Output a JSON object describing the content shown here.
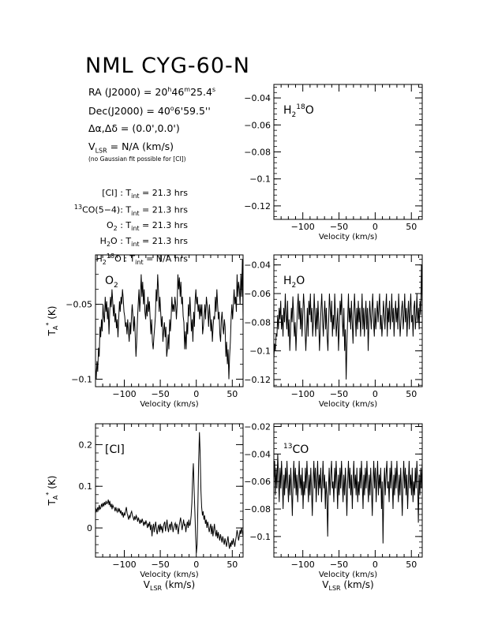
{
  "header": {
    "title": "NML CYG-60-N",
    "ra_label": "RA (J2000) =",
    "ra_h": "20",
    "ra_m": "46",
    "ra_s": "25.4",
    "dec_label": "Dec(J2000) =",
    "dec_d": "40",
    "dec_rest": "6'59.5''",
    "offset_label": "Δα,Δδ = (0.0',0.0')",
    "vlsr_pre": "V",
    "vlsr_sub": "LSR",
    "vlsr_post": " = N/A (km/s)",
    "note": "(no Gaussian fit possible for [CI])"
  },
  "integrations": [
    {
      "label": "[CI] : T",
      "sub": "int",
      "value": " = 21.3 hrs"
    },
    {
      "label": "CO(5−4): T",
      "pre_sup": "13",
      "sub": "int",
      "value": " = 21.3 hrs"
    },
    {
      "label": "O",
      "label_sub": "2",
      "label_post": " : T",
      "sub": "int",
      "value": " = 21.3 hrs"
    },
    {
      "label": "H",
      "label_sub": "2",
      "label_post": "O : T",
      "sub": "int",
      "value": " = 21.3 hrs"
    },
    {
      "label": "H",
      "label_sub": "2",
      "label_sup": "18",
      "label_post": "O : T",
      "sub": "int",
      "value": " = N/A hrs"
    }
  ],
  "axis_text": {
    "velocity": "Velocity (km/s)",
    "vlsr": "V",
    "vlsr_sub": "LSR",
    "vlsr_unit": " (km/s)",
    "ta": "T",
    "ta_sub": "A",
    "ta_sup": "*",
    "ta_unit": " (K)"
  },
  "chart_data": [
    {
      "type": "line",
      "name": "H2-18O",
      "label": "H",
      "label_sub": "2",
      "label_sup": "18",
      "label_post": "O",
      "xlim": [
        -140,
        65
      ],
      "ylim": [
        -0.13,
        -0.03
      ],
      "x_ticks": [
        -100,
        -50,
        0,
        50
      ],
      "y_ticks": [
        -0.04,
        -0.06,
        -0.08,
        -0.1,
        -0.12
      ],
      "y_tick_labels": [
        "−0.04",
        "−0.06",
        "−0.08",
        "−0.1",
        "−0.12"
      ],
      "x_tick_labels": [
        "−100",
        "−50",
        "0",
        "50"
      ],
      "y_axis_side": "left",
      "values": []
    },
    {
      "type": "line",
      "name": "O2",
      "label": "O",
      "label_sub": "2",
      "xlim": [
        -140,
        65
      ],
      "ylim": [
        -0.105,
        -0.017
      ],
      "x_ticks": [
        -100,
        -50,
        0,
        50
      ],
      "y_ticks": [
        -0.05,
        -0.1
      ],
      "y_tick_labels": [
        "−0.05",
        "−0.1"
      ],
      "x_tick_labels": [
        "−100",
        "−50",
        "0",
        "50"
      ],
      "y_axis_side": "left",
      "values": [
        -0.092,
        -0.1,
        -0.088,
        -0.095,
        -0.079,
        -0.085,
        -0.065,
        -0.072,
        -0.06,
        -0.068,
        -0.05,
        -0.058,
        -0.062,
        -0.045,
        -0.055,
        -0.048,
        -0.06,
        -0.052,
        -0.07,
        -0.055,
        -0.045,
        -0.052,
        -0.04,
        -0.048,
        -0.058,
        -0.05,
        -0.062,
        -0.056,
        -0.066,
        -0.06,
        -0.072,
        -0.06,
        -0.048,
        -0.055,
        -0.045,
        -0.05,
        -0.04,
        -0.046,
        -0.055,
        -0.058,
        -0.065,
        -0.062,
        -0.07,
        -0.06,
        -0.068,
        -0.075,
        -0.062,
        -0.07,
        -0.058,
        -0.05,
        -0.058,
        -0.068,
        -0.058,
        -0.07,
        -0.085,
        -0.075,
        -0.06,
        -0.05,
        -0.04,
        -0.055,
        -0.045,
        -0.03,
        -0.045,
        -0.035,
        -0.05,
        -0.04,
        -0.055,
        -0.06,
        -0.05,
        -0.058,
        -0.045,
        -0.055,
        -0.048,
        -0.06,
        -0.07,
        -0.06,
        -0.075,
        -0.08,
        -0.072,
        -0.065,
        -0.058,
        -0.04,
        -0.048,
        -0.03,
        -0.04,
        -0.055,
        -0.045,
        -0.055,
        -0.065,
        -0.058,
        -0.075,
        -0.068,
        -0.062,
        -0.072,
        -0.065,
        -0.085,
        -0.08,
        -0.07,
        -0.08,
        -0.06,
        -0.068,
        -0.058,
        -0.045,
        -0.055,
        -0.05,
        -0.055,
        -0.045,
        -0.05,
        -0.06,
        -0.05,
        -0.03,
        -0.04,
        -0.032,
        -0.045,
        -0.035,
        -0.05,
        -0.045,
        -0.058,
        -0.062,
        -0.08,
        -0.068,
        -0.08,
        -0.062,
        -0.07,
        -0.05,
        -0.058,
        -0.045,
        -0.055,
        -0.068,
        -0.06,
        -0.075,
        -0.055,
        -0.065,
        -0.048,
        -0.04,
        -0.05,
        -0.045,
        -0.055,
        -0.05,
        -0.06,
        -0.05,
        -0.058,
        -0.05,
        -0.07,
        -0.065,
        -0.058,
        -0.05,
        -0.06,
        -0.045,
        -0.05,
        -0.055,
        -0.065,
        -0.05,
        -0.058,
        -0.068,
        -0.06,
        -0.075,
        -0.065,
        -0.058,
        -0.06,
        -0.045,
        -0.055,
        -0.04,
        -0.05,
        -0.06,
        -0.055,
        -0.07,
        -0.075,
        -0.06,
        -0.055,
        -0.065,
        -0.07,
        -0.06,
        -0.065,
        -0.085,
        -0.075,
        -0.09,
        -0.08,
        -0.1,
        -0.085,
        -0.075,
        -0.06,
        -0.05,
        -0.06,
        -0.05,
        -0.04,
        -0.05,
        -0.045,
        -0.055,
        -0.03,
        -0.045,
        -0.035,
        -0.04,
        -0.05,
        -0.03,
        -0.045,
        -0.02,
        -0.06
      ]
    },
    {
      "type": "line",
      "name": "H2O",
      "label": "H",
      "label_sub": "2",
      "label_post": "O",
      "xlim": [
        -140,
        65
      ],
      "ylim": [
        -0.125,
        -0.033
      ],
      "x_ticks": [
        -100,
        -50,
        0,
        50
      ],
      "y_ticks": [
        -0.04,
        -0.06,
        -0.08,
        -0.1,
        -0.12
      ],
      "y_tick_labels": [
        "−0.04",
        "−0.06",
        "−0.08",
        "−0.1",
        "−0.12"
      ],
      "x_tick_labels": [
        "−100",
        "−50",
        "0",
        "50"
      ],
      "y_axis_side": "left",
      "values": [
        -0.105,
        -0.095,
        -0.1,
        -0.088,
        -0.09,
        -0.075,
        -0.085,
        -0.07,
        -0.078,
        -0.065,
        -0.085,
        -0.075,
        -0.09,
        -0.07,
        -0.08,
        -0.06,
        -0.075,
        -0.085,
        -0.065,
        -0.09,
        -0.078,
        -0.1,
        -0.085,
        -0.07,
        -0.08,
        -0.062,
        -0.075,
        -0.09,
        -0.08,
        -0.1,
        -0.085,
        -0.07,
        -0.06,
        -0.078,
        -0.065,
        -0.085,
        -0.07,
        -0.09,
        -0.075,
        -0.06,
        -0.07,
        -0.085,
        -0.1,
        -0.085,
        -0.07,
        -0.09,
        -0.065,
        -0.075,
        -0.06,
        -0.08,
        -0.07,
        -0.09,
        -0.08,
        -0.06,
        -0.075,
        -0.09,
        -0.07,
        -0.085,
        -0.065,
        -0.08,
        -0.1,
        -0.085,
        -0.07,
        -0.06,
        -0.078,
        -0.09,
        -0.075,
        -0.065,
        -0.085,
        -0.07,
        -0.09,
        -0.1,
        -0.08,
        -0.06,
        -0.07,
        -0.08,
        -0.065,
        -0.09,
        -0.075,
        -0.085,
        -0.06,
        -0.075,
        -0.09,
        -0.08,
        -0.07,
        -0.1,
        -0.085,
        -0.065,
        -0.075,
        -0.06,
        -0.08,
        -0.09,
        -0.07,
        -0.1,
        -0.085,
        -0.12,
        -0.095,
        -0.078,
        -0.06,
        -0.08,
        -0.07,
        -0.085,
        -0.065,
        -0.08,
        -0.095,
        -0.075,
        -0.06,
        -0.075,
        -0.09,
        -0.07,
        -0.085,
        -0.065,
        -0.08,
        -0.07,
        -0.09,
        -0.075,
        -0.06,
        -0.085,
        -0.07,
        -0.09,
        -0.075,
        -0.065,
        -0.085,
        -0.07,
        -0.1,
        -0.08,
        -0.065,
        -0.075,
        -0.085,
        -0.07,
        -0.06,
        -0.08,
        -0.09,
        -0.07,
        -0.085,
        -0.075,
        -0.065,
        -0.08,
        -0.07,
        -0.06,
        -0.085,
        -0.075,
        -0.09,
        -0.08,
        -0.065,
        -0.075,
        -0.085,
        -0.07,
        -0.06,
        -0.09,
        -0.07,
        -0.08,
        -0.065,
        -0.085,
        -0.075,
        -0.06,
        -0.08,
        -0.07,
        -0.09,
        -0.075,
        -0.065,
        -0.08,
        -0.07,
        -0.085,
        -0.06,
        -0.075,
        -0.09,
        -0.08,
        -0.07,
        -0.065,
        -0.085,
        -0.075,
        -0.06,
        -0.08,
        -0.07,
        -0.09,
        -0.075,
        -0.065,
        -0.085,
        -0.07,
        -0.06,
        -0.08,
        -0.075,
        -0.09,
        -0.07,
        -0.065,
        -0.085,
        -0.075,
        -0.06,
        -0.08,
        -0.07,
        -0.085,
        -0.065,
        -0.075,
        -0.04,
        -0.07
      ]
    },
    {
      "type": "line",
      "name": "[CI]",
      "label": "[CI]",
      "xlim": [
        -140,
        65
      ],
      "ylim": [
        -0.07,
        0.25
      ],
      "x_ticks": [
        -100,
        -50,
        0,
        50
      ],
      "y_ticks": [
        0.2,
        0.1,
        0
      ],
      "y_tick_labels": [
        "0.2",
        "0.1",
        "0"
      ],
      "x_tick_labels": [
        "−100",
        "−50",
        "0",
        "50"
      ],
      "y_axis_side": "left",
      "values": [
        0.035,
        0.045,
        0.04,
        0.05,
        0.042,
        0.055,
        0.045,
        0.048,
        0.058,
        0.05,
        0.06,
        0.052,
        0.062,
        0.055,
        0.065,
        0.058,
        0.06,
        0.068,
        0.055,
        0.065,
        0.05,
        0.058,
        0.045,
        0.055,
        0.05,
        0.048,
        0.04,
        0.05,
        0.042,
        0.038,
        0.048,
        0.04,
        0.045,
        0.035,
        0.042,
        0.03,
        0.038,
        0.025,
        0.035,
        0.03,
        0.042,
        0.05,
        0.035,
        0.028,
        0.02,
        0.03,
        0.025,
        0.035,
        0.04,
        0.03,
        0.025,
        0.018,
        0.028,
        0.02,
        0.03,
        0.025,
        0.015,
        0.025,
        0.018,
        0.01,
        0.02,
        0.012,
        0.022,
        0.015,
        0.005,
        0.015,
        0.008,
        0.018,
        0.01,
        0.0,
        0.01,
        0.005,
        0.015,
        -0.005,
        0.008,
        -0.02,
        0.0,
        0.01,
        -0.01,
        0.005,
        0.015,
        -0.005,
        -0.015,
        0.0,
        0.008,
        -0.01,
        0.01,
        -0.005,
        0.005,
        -0.012,
        0.0,
        0.01,
        0.015,
        -0.008,
        0.005,
        0.02,
        0.0,
        -0.01,
        0.005,
        0.01,
        -0.005,
        0.015,
        0.005,
        -0.01,
        0.0,
        0.008,
        0.012,
        -0.005,
        0.01,
        0.0,
        -0.015,
        0.005,
        0.015,
        0.025,
        0.01,
        -0.005,
        0.008,
        0.02,
        0.005,
        0.01,
        -0.01,
        0.005,
        0.015,
        0.0,
        0.02,
        0.005,
        0.01,
        0.03,
        0.06,
        0.12,
        0.155,
        0.09,
        0.04,
        -0.02,
        -0.06,
        -0.04,
        0.06,
        0.16,
        0.23,
        0.18,
        0.09,
        0.05,
        0.03,
        0.04,
        0.02,
        0.03,
        0.01,
        0.02,
        0.0,
        0.015,
        0.005,
        -0.01,
        0.0,
        0.01,
        -0.015,
        0.005,
        -0.02,
        -0.005,
        0.01,
        -0.01,
        -0.02,
        -0.005,
        -0.025,
        -0.01,
        -0.02,
        -0.03,
        -0.015,
        -0.025,
        -0.035,
        -0.02,
        -0.03,
        -0.04,
        -0.025,
        -0.035,
        -0.045,
        -0.03,
        -0.02,
        -0.04,
        -0.05,
        -0.035,
        -0.045,
        -0.03,
        -0.04,
        -0.025,
        -0.035,
        -0.045,
        -0.03,
        -0.02,
        -0.005,
        -0.015,
        -0.03,
        -0.02,
        -0.005,
        -0.015,
        0.0,
        -0.01,
        -0.02
      ]
    },
    {
      "type": "line",
      "name": "13CO",
      "label": "CO",
      "label_pre_sup": "13",
      "xlim": [
        -140,
        65
      ],
      "ylim": [
        -0.115,
        -0.018
      ],
      "x_ticks": [
        -100,
        -50,
        0,
        50
      ],
      "y_ticks": [
        -0.02,
        -0.04,
        -0.06,
        -0.08,
        -0.1
      ],
      "y_tick_labels": [
        "−0.02",
        "−0.04",
        "−0.06",
        "−0.08",
        "−0.1"
      ],
      "x_tick_labels": [
        "−100",
        "−50",
        "0",
        "50"
      ],
      "y_axis_side": "left",
      "values": [
        -0.06,
        -0.045,
        -0.07,
        -0.05,
        -0.065,
        -0.04,
        -0.055,
        -0.075,
        -0.05,
        -0.065,
        -0.045,
        -0.06,
        -0.08,
        -0.055,
        -0.07,
        -0.05,
        -0.065,
        -0.045,
        -0.06,
        -0.075,
        -0.055,
        -0.07,
        -0.05,
        -0.065,
        -0.085,
        -0.06,
        -0.045,
        -0.065,
        -0.05,
        -0.07,
        -0.055,
        -0.075,
        -0.06,
        -0.045,
        -0.065,
        -0.055,
        -0.07,
        -0.05,
        -0.08,
        -0.06,
        -0.07,
        -0.05,
        -0.065,
        -0.045,
        -0.06,
        -0.075,
        -0.055,
        -0.07,
        -0.05,
        -0.065,
        -0.085,
        -0.06,
        -0.045,
        -0.065,
        -0.05,
        -0.075,
        -0.06,
        -0.045,
        -0.07,
        -0.055,
        -0.065,
        -0.05,
        -0.075,
        -0.06,
        -0.045,
        -0.065,
        -0.055,
        -0.08,
        -0.06,
        -0.07,
        -0.1,
        -0.065,
        -0.05,
        -0.07,
        -0.055,
        -0.045,
        -0.065,
        -0.06,
        -0.075,
        -0.05,
        -0.065,
        -0.045,
        -0.06,
        -0.08,
        -0.055,
        -0.07,
        -0.05,
        -0.065,
        -0.045,
        -0.06,
        -0.075,
        -0.055,
        -0.07,
        -0.05,
        -0.065,
        -0.085,
        -0.06,
        -0.045,
        -0.065,
        -0.05,
        -0.07,
        -0.055,
        -0.08,
        -0.06,
        -0.045,
        -0.065,
        -0.055,
        -0.07,
        -0.05,
        -0.075,
        -0.06,
        -0.07,
        -0.05,
        -0.065,
        -0.045,
        -0.06,
        -0.08,
        -0.055,
        -0.07,
        -0.05,
        -0.065,
        -0.045,
        -0.06,
        -0.075,
        -0.055,
        -0.07,
        -0.05,
        -0.065,
        -0.085,
        -0.06,
        -0.045,
        -0.065,
        -0.05,
        -0.075,
        -0.06,
        -0.045,
        -0.07,
        -0.055,
        -0.065,
        -0.05,
        -0.08,
        -0.06,
        -0.105,
        -0.065,
        -0.05,
        -0.07,
        -0.055,
        -0.045,
        -0.065,
        -0.06,
        -0.075,
        -0.05,
        -0.065,
        -0.045,
        -0.06,
        -0.08,
        -0.055,
        -0.07,
        -0.05,
        -0.065,
        -0.045,
        -0.06,
        -0.075,
        -0.055,
        -0.07,
        -0.05,
        -0.065,
        -0.085,
        -0.06,
        -0.045,
        -0.065,
        -0.05,
        -0.07,
        -0.055,
        -0.08,
        -0.06,
        -0.045,
        -0.065,
        -0.055,
        -0.07,
        -0.05,
        -0.075,
        -0.06,
        -0.07,
        -0.05,
        -0.065,
        -0.045,
        -0.06,
        -0.09,
        -0.055,
        -0.07,
        -0.05,
        -0.065,
        -0.045
      ]
    }
  ]
}
